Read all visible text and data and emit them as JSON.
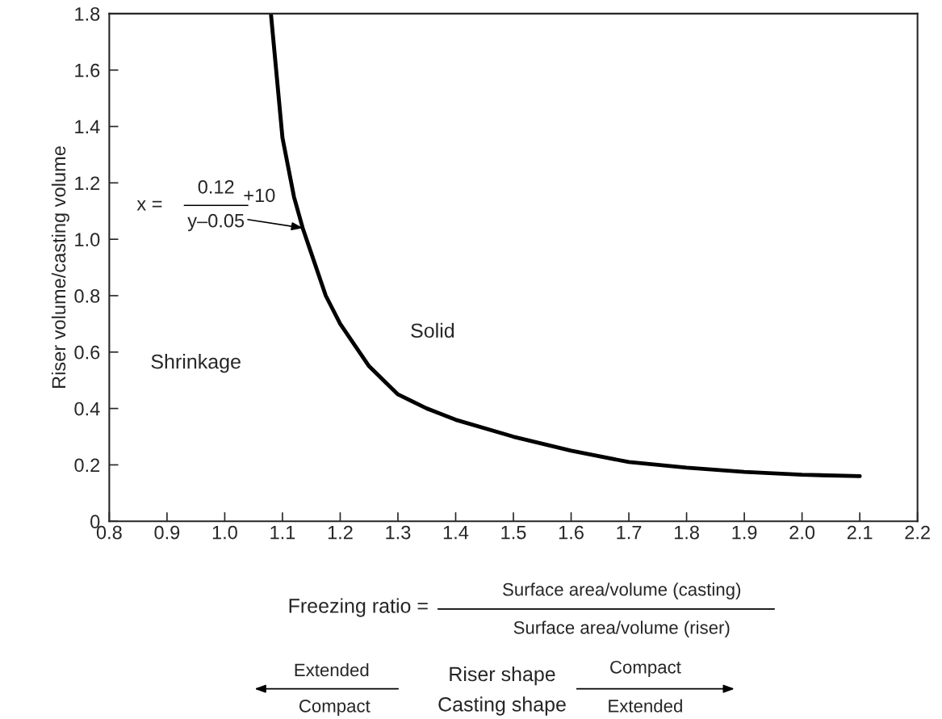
{
  "chart_data": {
    "type": "line",
    "xlabel": "Freezing ratio =\nSurface area/volume (casting)\nSurface area/volume (riser)",
    "ylabel": "Riser volume/casting volume",
    "x": [
      1.08,
      1.1,
      1.12,
      1.135,
      1.15,
      1.175,
      1.2,
      1.25,
      1.3,
      1.35,
      1.4,
      1.5,
      1.6,
      1.7,
      1.8,
      1.9,
      2.0,
      2.1
    ],
    "series": [
      {
        "color": "#000000",
        "values": [
          1.8,
          1.36,
          1.15,
          1.04,
          0.95,
          0.8,
          0.7,
          0.55,
          0.45,
          0.4,
          0.36,
          0.3,
          0.25,
          0.21,
          0.19,
          0.175,
          0.165,
          0.16
        ]
      }
    ],
    "xlim": [
      0.8,
      2.2
    ],
    "ylim": [
      0,
      1.8
    ],
    "xticks": [
      0.8,
      0.9,
      {
        "value": 1.0,
        "label": "1.0"
      },
      1.1,
      1.2,
      1.3,
      1.4,
      1.5,
      1.6,
      1.7,
      1.8,
      1.9,
      {
        "value": 2.0,
        "label": "2.0"
      },
      2.1,
      2.2
    ],
    "yticks": [
      0,
      0.2,
      0.4,
      0.6,
      0.8,
      {
        "value": 1.0,
        "label": "1.0"
      },
      1.2,
      1.4,
      1.6,
      1.8
    ],
    "grid": false,
    "marker": "none",
    "line_style": "solid",
    "annotations": [
      "x =",
      "0.12",
      "y–0.05",
      {
        "text": "+10",
        "x": 1.135,
        "y": 1.04
      },
      "Shrinkage",
      "Solid",
      "Extended",
      "Compact",
      "Riser shape",
      "Casting shape",
      "Compact",
      "Extended"
    ]
  }
}
